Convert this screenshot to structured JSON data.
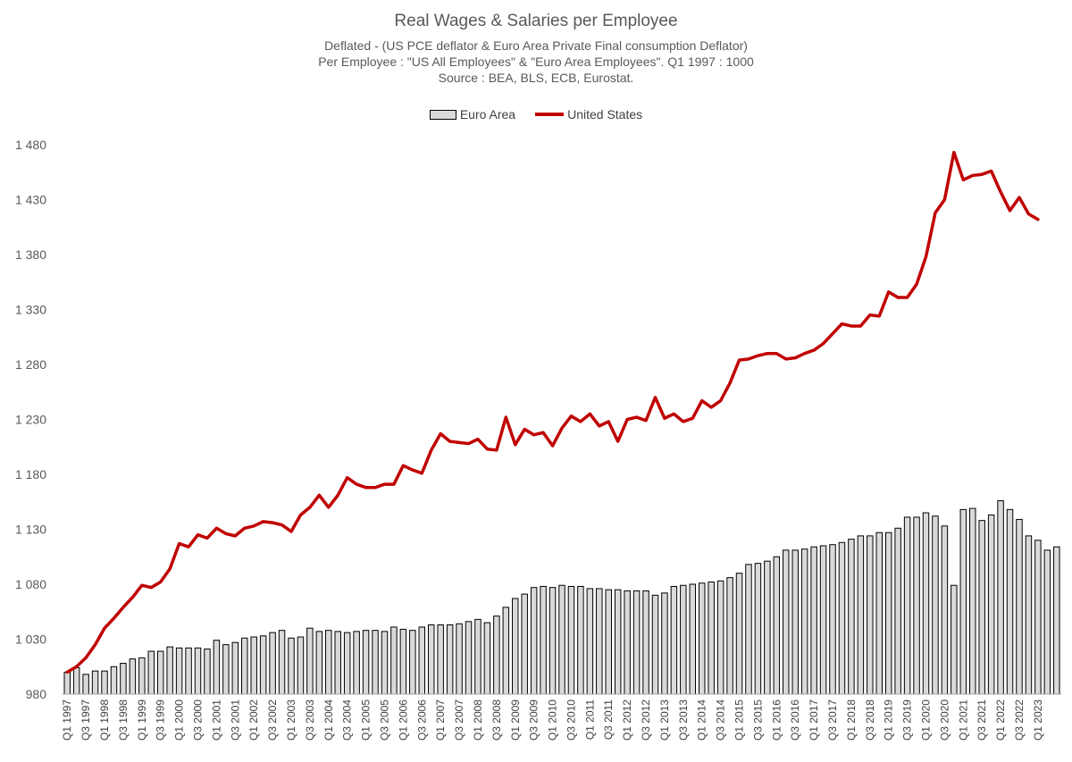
{
  "chart_data": {
    "type": "bar+line",
    "title": "Real Wages & Salaries per Employee",
    "subtitles": [
      "Deflated - (US PCE deflator & Euro Area Private Final consumption Deflator)",
      "Per Employee : \"US All Employees\" & \"Euro Area Employees\". Q1 1997 : 1000",
      "Source : BEA, BLS, ECB, Eurostat."
    ],
    "ylim": [
      980,
      1480
    ],
    "yticks": [
      980,
      1030,
      1080,
      1130,
      1180,
      1230,
      1280,
      1330,
      1380,
      1430,
      1480
    ],
    "ytick_labels": [
      "980",
      "1 030",
      "1 080",
      "1 130",
      "1 180",
      "1 230",
      "1 280",
      "1 330",
      "1 380",
      "1 430",
      "1 480"
    ],
    "x_labels": [
      "Q1 1997",
      "Q3 1997",
      "Q1 1998",
      "Q3 1998",
      "Q1 1999",
      "Q3 1999",
      "Q1 2000",
      "Q3 2000",
      "Q1 2001",
      "Q3 2001",
      "Q1 2002",
      "Q3 2002",
      "Q1 2003",
      "Q3 2003",
      "Q1 2004",
      "Q3 2004",
      "Q1 2005",
      "Q3 2005",
      "Q1 2006",
      "Q3 2006",
      "Q1 2007",
      "Q3 2007",
      "Q1 2008",
      "Q3 2008",
      "Q1 2009",
      "Q3 2009",
      "Q1 2010",
      "Q3 2010",
      "Q1 2011",
      "Q3 2011",
      "Q1 2012",
      "Q3 2012",
      "Q1 2013",
      "Q3 2013",
      "Q1 2014",
      "Q3 2014",
      "Q1 2015",
      "Q3 2015",
      "Q1 2016",
      "Q3 2016",
      "Q1 2017",
      "Q3 2017",
      "Q1 2018",
      "Q3 2018",
      "Q1 2019",
      "Q3 2019",
      "Q1 2020",
      "Q3 2020",
      "Q1 2021",
      "Q3 2021",
      "Q1 2022",
      "Q3 2022",
      "Q1 2023"
    ],
    "legend": [
      {
        "name": "Euro Area",
        "color": "#d9d9d9"
      },
      {
        "name": "United States",
        "color": "#c00000"
      }
    ],
    "legend_placement": "top-center",
    "series": [
      {
        "name": "Euro Area",
        "kind": "bar",
        "color": "#d9d9d9",
        "values": [
          1000,
          1004,
          998,
          1001,
          1001,
          1005,
          1008,
          1012,
          1013,
          1019,
          1019,
          1023,
          1022,
          1022,
          1022,
          1021,
          1029,
          1025,
          1027,
          1031,
          1032,
          1033,
          1036,
          1038,
          1031,
          1032,
          1040,
          1037,
          1038,
          1037,
          1036,
          1037,
          1038,
          1038,
          1037,
          1041,
          1039,
          1038,
          1041,
          1043,
          1043,
          1043,
          1044,
          1046,
          1048,
          1045,
          1051,
          1059,
          1067,
          1071,
          1077,
          1078,
          1077,
          1079,
          1078,
          1078,
          1076,
          1076,
          1075,
          1075,
          1074,
          1074,
          1074,
          1070,
          1072,
          1078,
          1079,
          1080,
          1081,
          1082,
          1083,
          1086,
          1090,
          1098,
          1099,
          1101,
          1105,
          1111,
          1111,
          1112,
          1114,
          1115,
          1116,
          1118,
          1121,
          1124,
          1124,
          1127,
          1127,
          1131,
          1141,
          1141,
          1145,
          1142,
          1133,
          1079,
          1148,
          1149,
          1138,
          1143,
          1156,
          1148,
          1139,
          1124,
          1120,
          1111,
          1114
        ]
      },
      {
        "name": "United States",
        "kind": "line",
        "color": "#c00000",
        "values": [
          1000,
          1005,
          1013,
          1025,
          1040,
          1049,
          1059,
          1068,
          1079,
          1077,
          1082,
          1094,
          1117,
          1114,
          1125,
          1122,
          1131,
          1126,
          1124,
          1131,
          1133,
          1137,
          1136,
          1134,
          1128,
          1143,
          1150,
          1161,
          1150,
          1161,
          1177,
          1171,
          1168,
          1168,
          1171,
          1171,
          1188,
          1184,
          1181,
          1202,
          1217,
          1210,
          1209,
          1208,
          1212,
          1203,
          1202,
          1232,
          1207,
          1221,
          1216,
          1218,
          1206,
          1222,
          1233,
          1228,
          1235,
          1224,
          1228,
          1210,
          1230,
          1232,
          1229,
          1250,
          1231,
          1235,
          1228,
          1231,
          1247,
          1241,
          1247,
          1263,
          1284,
          1285,
          1288,
          1290,
          1290,
          1285,
          1286,
          1290,
          1293,
          1299,
          1308,
          1317,
          1315,
          1315,
          1325,
          1324,
          1346,
          1341,
          1341,
          1353,
          1378,
          1418,
          1430,
          1473,
          1448,
          1452,
          1453,
          1456,
          1437,
          1420,
          1432,
          1417,
          1412
        ]
      }
    ]
  }
}
